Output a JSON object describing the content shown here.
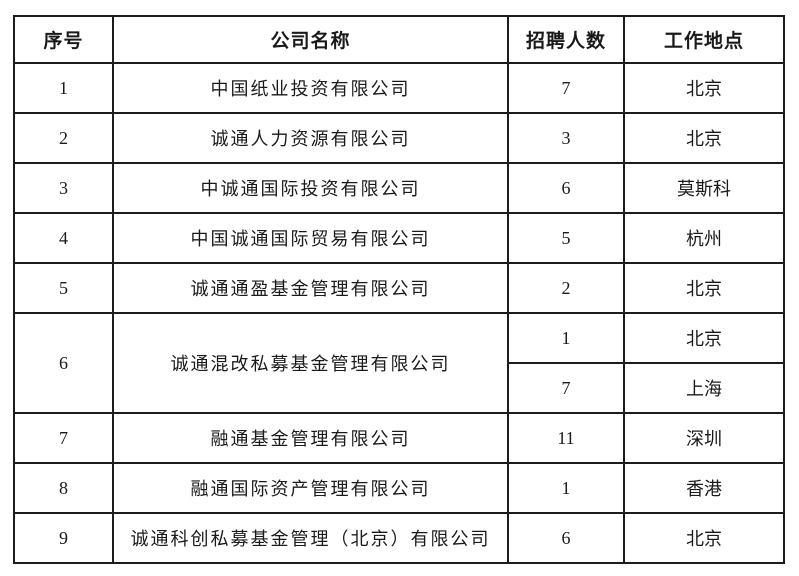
{
  "table": {
    "headers": [
      {
        "key": "no",
        "label": "序号"
      },
      {
        "key": "company",
        "label": "公司名称"
      },
      {
        "key": "count",
        "label": "招聘人数"
      },
      {
        "key": "location",
        "label": "工作地点"
      }
    ],
    "rows": [
      {
        "no": "1",
        "company": "中国纸业投资有限公司",
        "entries": [
          {
            "count": "7",
            "location": "北京"
          }
        ]
      },
      {
        "no": "2",
        "company": "诚通人力资源有限公司",
        "entries": [
          {
            "count": "3",
            "location": "北京"
          }
        ]
      },
      {
        "no": "3",
        "company": "中诚通国际投资有限公司",
        "entries": [
          {
            "count": "6",
            "location": "莫斯科"
          }
        ]
      },
      {
        "no": "4",
        "company": "中国诚通国际贸易有限公司",
        "entries": [
          {
            "count": "5",
            "location": "杭州"
          }
        ]
      },
      {
        "no": "5",
        "company": "诚通通盈基金管理有限公司",
        "entries": [
          {
            "count": "2",
            "location": "北京"
          }
        ]
      },
      {
        "no": "6",
        "company": "诚通混改私募基金管理有限公司",
        "entries": [
          {
            "count": "1",
            "location": "北京"
          },
          {
            "count": "7",
            "location": "上海"
          }
        ]
      },
      {
        "no": "7",
        "company": "融通基金管理有限公司",
        "entries": [
          {
            "count": "11",
            "location": "深圳"
          }
        ]
      },
      {
        "no": "8",
        "company": "融通国际资产管理有限公司",
        "entries": [
          {
            "count": "1",
            "location": "香港"
          }
        ]
      },
      {
        "no": "9",
        "company": "诚通科创私募基金管理（北京）有限公司",
        "entries": [
          {
            "count": "6",
            "location": "北京"
          }
        ]
      }
    ],
    "colors": {
      "border": "#1c1c1c",
      "text": "#1a1a1a",
      "background": "#ffffff"
    }
  }
}
